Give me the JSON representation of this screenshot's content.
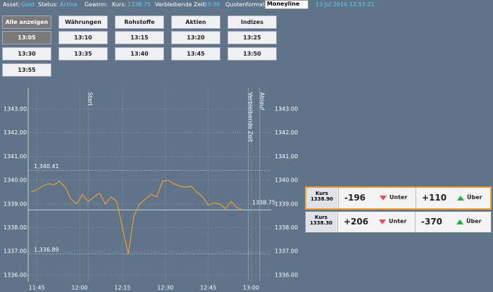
{
  "header": {
    "asset_label": "Asset:",
    "asset": "Gold",
    "status_label": "Status:",
    "status": "Active",
    "profit_label": "Gewinn:",
    "price_label": "Kurs:",
    "price": "1338.75",
    "remaining_label": "Verbleibende Zeit:",
    "remaining": "03:39",
    "format_label": "Quotenformat:",
    "format": "Moneyline",
    "datetime": "13 Jul 2016 12:57:21"
  },
  "tabs": [
    "Alle anzeigen",
    "Währungen",
    "Rohstoffe",
    "Aktien",
    "Indizes"
  ],
  "expiry_times": [
    "13:05",
    "13:10",
    "13:15",
    "13:20",
    "13:25",
    "13:30",
    "13:35",
    "13:40",
    "13:45",
    "13:50",
    "13:55"
  ],
  "chart_data": {
    "type": "line",
    "color": "#f0a030",
    "grid": true,
    "x": [
      "11:43",
      "11:45",
      "11:47",
      "11:49",
      "11:51",
      "11:53",
      "11:55",
      "11:57",
      "11:59",
      "12:01",
      "12:03",
      "12:05",
      "12:07",
      "12:09",
      "12:11",
      "12:13",
      "12:15",
      "12:17",
      "12:19",
      "12:21",
      "12:23",
      "12:25",
      "12:27",
      "12:29",
      "12:31",
      "12:33",
      "12:35",
      "12:37",
      "12:39",
      "12:41",
      "12:43",
      "12:45",
      "12:47",
      "12:49",
      "12:51",
      "12:53",
      "12:55",
      "12:57"
    ],
    "values": [
      1339.5,
      1339.6,
      1339.75,
      1339.85,
      1339.8,
      1339.95,
      1339.7,
      1339.2,
      1339.0,
      1339.4,
      1339.1,
      1339.3,
      1339.45,
      1339.0,
      1339.3,
      1339.1,
      1338.0,
      1336.89,
      1338.5,
      1339.0,
      1339.2,
      1339.4,
      1339.3,
      1339.95,
      1340.0,
      1339.85,
      1339.75,
      1339.7,
      1339.75,
      1339.5,
      1339.3,
      1338.95,
      1339.05,
      1339.0,
      1338.8,
      1339.1,
      1338.85,
      1338.75
    ],
    "xlim": [
      "11:42",
      "13:07"
    ],
    "xticks": [
      "11:45",
      "12:00",
      "12:15",
      "12:30",
      "12:45",
      "13:00"
    ],
    "ylim": [
      1335.73,
      1343.89
    ],
    "yticks": [
      {
        "value": 1336,
        "label": "1336.00"
      },
      {
        "value": 1337,
        "label": "1337.00"
      },
      {
        "value": 1338,
        "label": "1338.00"
      },
      {
        "value": 1339,
        "label": "1339.00"
      },
      {
        "value": 1340,
        "label": "1340.00"
      },
      {
        "value": 1341,
        "label": "1341.00"
      },
      {
        "value": 1342,
        "label": "1342.00"
      },
      {
        "value": 1343,
        "label": "1343.00"
      }
    ],
    "range_lines": [
      {
        "value": 1340.41,
        "label": "1,340.41"
      },
      {
        "value": 1336.89,
        "label": "1,336.89"
      }
    ],
    "current_line": {
      "value": 1338.75,
      "label": "1338.75"
    },
    "time_markers": [
      {
        "x": "12:03",
        "label": "Start"
      },
      {
        "x": "12:59",
        "label": "Verbleibende Zeit"
      },
      {
        "x": "13:03",
        "label": "Ablauf"
      }
    ]
  },
  "quotes": [
    {
      "kurs": "Kurs",
      "price": "1338.90",
      "cells": [
        {
          "value": "-196",
          "label": "Unter"
        },
        {
          "value": "+110",
          "label": "Über"
        }
      ]
    },
    {
      "kurs": "Kurs",
      "price": "1338.30",
      "cells": [
        {
          "value": "+206",
          "label": "Unter"
        },
        {
          "value": "-370",
          "label": "Über"
        }
      ]
    }
  ]
}
